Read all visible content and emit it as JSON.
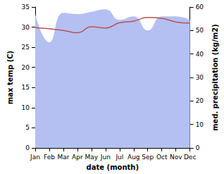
{
  "chart_data": {
    "type": "line",
    "categories": [
      "Jan",
      "Feb",
      "Mar",
      "Apr",
      "May",
      "Jun",
      "Jul",
      "Aug",
      "Sep",
      "Oct",
      "Nov",
      "Dec"
    ],
    "xlabel": "date (month)",
    "ylabel": "max temp (C)",
    "y2label": "med. precipitation (kg/m2)",
    "ylim": [
      0,
      35
    ],
    "yticks": [
      0,
      5,
      10,
      15,
      20,
      25,
      30,
      35
    ],
    "y2lim": [
      0,
      60
    ],
    "y2ticks": [
      0,
      10,
      20,
      30,
      40,
      50,
      60
    ],
    "grid": false,
    "series": [
      {
        "name": "med. precipitation",
        "type": "area",
        "axis": "y2",
        "color": "#b4c0f2",
        "values": [
          57,
          45,
          57.5,
          57,
          58,
          59,
          54.5,
          56,
          50,
          56,
          56,
          54.5
        ]
      },
      {
        "name": "max temp",
        "type": "line",
        "color": "#b8534f",
        "values": [
          29.9,
          29.6,
          29.2,
          28.6,
          30.1,
          29.8,
          31.1,
          31.5,
          32.4,
          32.2,
          31.3,
          31.0
        ]
      }
    ]
  }
}
